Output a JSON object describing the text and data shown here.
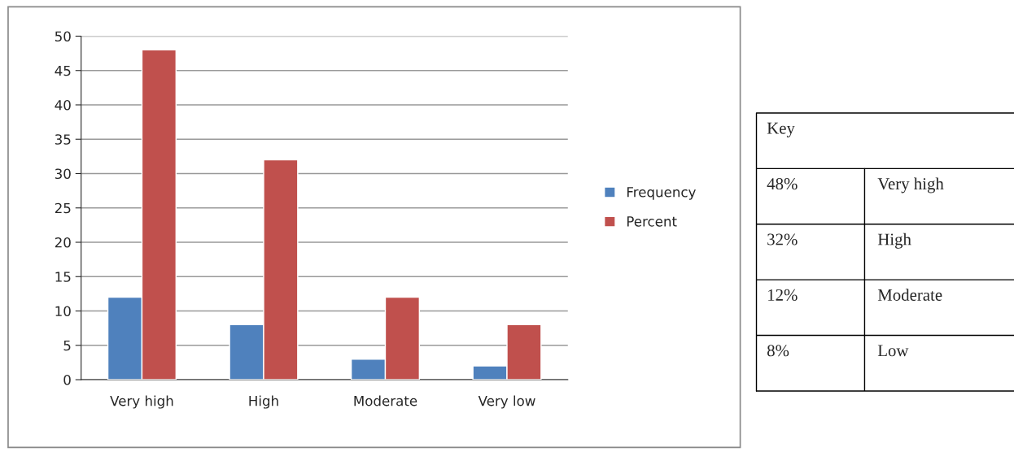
{
  "chart_data": [
    {
      "type": "bar",
      "categories": [
        "Very high",
        "High",
        "Moderate",
        "Very low"
      ],
      "series": [
        {
          "name": "Frequency",
          "color": "#4f81bd",
          "values": [
            12,
            8,
            3,
            2
          ]
        },
        {
          "name": "Percent",
          "color": "#c0504d",
          "values": [
            48,
            32,
            12,
            8
          ]
        }
      ],
      "ylim": [
        0,
        50
      ],
      "yticks": [
        0,
        5,
        10,
        15,
        20,
        25,
        30,
        35,
        40,
        45,
        50
      ],
      "grid": "y",
      "legend": "right"
    },
    {
      "type": "other",
      "title": "Key",
      "annotations": [
        "48%",
        "Very high",
        "32%",
        "High",
        "12%",
        "Moderate",
        "8%",
        "Low"
      ]
    }
  ]
}
